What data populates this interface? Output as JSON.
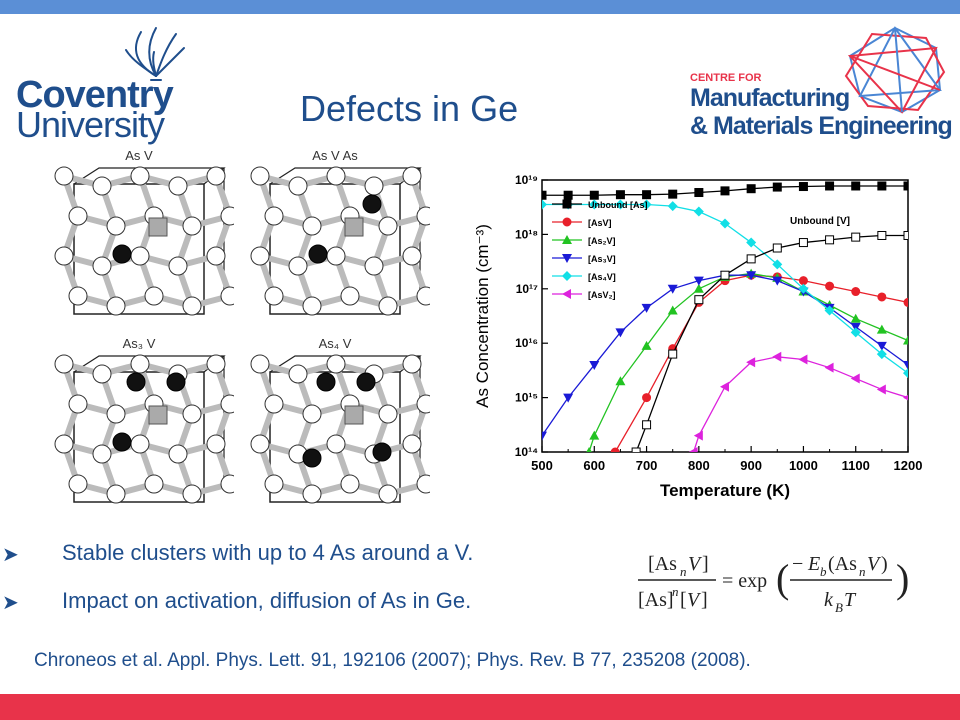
{
  "header": {
    "university_line1": "Coventry",
    "university_line2": "University",
    "title": "Defects in Ge",
    "centre_small": "CENTRE FOR",
    "centre_line1": "Manufacturing",
    "centre_line2": "& Materials Engineering"
  },
  "structures": [
    {
      "label": "As V"
    },
    {
      "label": "As V As"
    },
    {
      "label": "As₃ V"
    },
    {
      "label": "As₄ V"
    }
  ],
  "bullets": [
    {
      "text": "Stable clusters with up to 4 As around a V."
    },
    {
      "text": "Impact on activation, diffusion of As in Ge."
    }
  ],
  "citation": "Chroneos et al. Appl. Phys. Lett. 91, 192106 (2007); Phys. Rev. B 77, 235208 (2008).",
  "colors": {
    "title": "#1f4e8c",
    "top_bar": "#5b8fd6",
    "bottom_bar": "#e8334a"
  },
  "icons": {
    "bullet": "arrow-bullet-icon",
    "university_logo": "phoenix-logo",
    "centre_logo": "star-polygon-logo"
  },
  "chart_data": {
    "type": "line",
    "xlabel": "Temperature (K)",
    "ylabel": "As Concentration (cm⁻³)",
    "xlim": [
      500,
      1200
    ],
    "ylim_log10": [
      14,
      19
    ],
    "yscale": "log",
    "x_ticks": [
      500,
      600,
      700,
      800,
      900,
      1000,
      1100,
      1200
    ],
    "y_ticks": [
      "10¹⁴",
      "10¹⁵",
      "10¹⁶",
      "10¹⁷",
      "10¹⁸",
      "10¹⁹"
    ],
    "legend_position": "left",
    "annotation": "Unbound [V]",
    "series": [
      {
        "name": "Unbound [As]",
        "color": "#000000",
        "marker": "square",
        "x": [
          500,
          550,
          600,
          650,
          700,
          750,
          800,
          850,
          900,
          950,
          1000,
          1050,
          1100,
          1150,
          1200
        ],
        "log10y": [
          18.72,
          18.72,
          18.72,
          18.73,
          18.73,
          18.74,
          18.77,
          18.8,
          18.84,
          18.87,
          18.88,
          18.89,
          18.89,
          18.89,
          18.89
        ]
      },
      {
        "name": "[AsV]",
        "color": "#e8202a",
        "marker": "circle",
        "x": [
          640,
          700,
          750,
          800,
          850,
          900,
          950,
          1000,
          1050,
          1100,
          1150,
          1200
        ],
        "log10y": [
          14,
          15.0,
          15.9,
          16.75,
          17.15,
          17.25,
          17.22,
          17.15,
          17.05,
          16.95,
          16.85,
          16.75
        ]
      },
      {
        "name": "[As₂V]",
        "color": "#22c322",
        "marker": "triangle-up",
        "x": [
          590,
          600,
          650,
          700,
          750,
          800,
          850,
          900,
          950,
          1000,
          1050,
          1100,
          1150,
          1200
        ],
        "log10y": [
          14,
          14.3,
          15.3,
          15.95,
          16.6,
          17.0,
          17.22,
          17.28,
          17.2,
          16.95,
          16.7,
          16.45,
          16.25,
          16.05
        ]
      },
      {
        "name": "[As₃V]",
        "color": "#1a1ad6",
        "marker": "triangle-down",
        "x": [
          500,
          550,
          600,
          650,
          700,
          750,
          800,
          850,
          900,
          950,
          1000,
          1050,
          1100,
          1150,
          1200
        ],
        "log10y": [
          14.3,
          15.0,
          15.6,
          16.2,
          16.65,
          17.0,
          17.15,
          17.25,
          17.25,
          17.15,
          16.95,
          16.65,
          16.3,
          15.95,
          15.6
        ]
      },
      {
        "name": "[As₄V]",
        "color": "#12dfe6",
        "marker": "diamond",
        "x": [
          500,
          550,
          600,
          650,
          700,
          750,
          800,
          850,
          900,
          950,
          1000,
          1050,
          1100,
          1150,
          1200
        ],
        "log10y": [
          18.55,
          18.55,
          18.55,
          18.55,
          18.55,
          18.52,
          18.42,
          18.2,
          17.85,
          17.45,
          17.0,
          16.6,
          16.2,
          15.8,
          15.45
        ]
      },
      {
        "name": "[AsV₂]",
        "color": "#dd22dd",
        "marker": "triangle-left",
        "x": [
          790,
          800,
          850,
          900,
          950,
          1000,
          1050,
          1100,
          1150,
          1200
        ],
        "log10y": [
          14,
          14.3,
          15.2,
          15.65,
          15.75,
          15.7,
          15.55,
          15.35,
          15.15,
          15.0
        ]
      },
      {
        "name": "Unbound [V]",
        "color": "#000000",
        "marker": "open-square",
        "x": [
          680,
          700,
          750,
          800,
          850,
          900,
          950,
          1000,
          1050,
          1100,
          1150,
          1200
        ],
        "log10y": [
          14,
          14.5,
          15.8,
          16.8,
          17.25,
          17.55,
          17.75,
          17.85,
          17.9,
          17.95,
          17.98,
          17.98
        ]
      }
    ]
  }
}
